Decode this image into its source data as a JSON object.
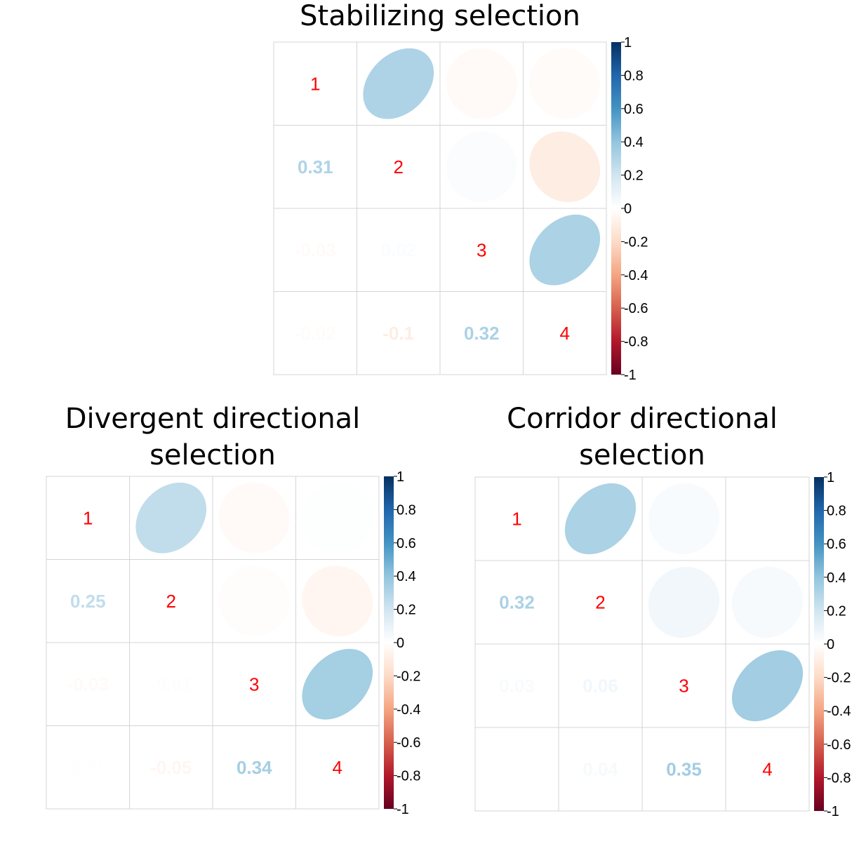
{
  "chart_data": [
    {
      "type": "heatmap",
      "title_lines": [
        "Stabilizing selection"
      ],
      "variables": [
        "1",
        "2",
        "3",
        "4"
      ],
      "matrix": [
        [
          1,
          0.31,
          -0.03,
          -0.02
        ],
        [
          0.31,
          1,
          0.02,
          -0.1
        ],
        [
          -0.03,
          0.02,
          1,
          0.32
        ],
        [
          -0.02,
          -0.1,
          0.32,
          1
        ]
      ],
      "upper": "ellipse",
      "lower": "number",
      "legend": {
        "ticks": [
          "-1",
          "-0.8",
          "-0.6",
          "-0.4",
          "-0.2",
          "0",
          "0.2",
          "0.4",
          "0.6",
          "0.8",
          "1"
        ],
        "range": [
          -1,
          1
        ],
        "placement": "right"
      }
    },
    {
      "type": "heatmap",
      "title_lines": [
        "Divergent directional",
        "selection"
      ],
      "variables": [
        "1",
        "2",
        "3",
        "4"
      ],
      "matrix": [
        [
          1,
          0.25,
          -0.03,
          0.01
        ],
        [
          0.25,
          1,
          -0.01,
          -0.05
        ],
        [
          -0.03,
          -0.01,
          1,
          0.34
        ],
        [
          0.01,
          -0.05,
          0.34,
          1
        ]
      ],
      "upper": "ellipse",
      "lower": "number",
      "legend": {
        "ticks": [
          "-1",
          "-0.8",
          "-0.6",
          "-0.4",
          "-0.2",
          "0",
          "0.2",
          "0.4",
          "0.6",
          "0.8",
          "1"
        ],
        "range": [
          -1,
          1
        ],
        "placement": "right"
      }
    },
    {
      "type": "heatmap",
      "title_lines": [
        "Corridor directional",
        "selection"
      ],
      "variables": [
        "1",
        "2",
        "3",
        "4"
      ],
      "matrix": [
        [
          1,
          0.32,
          0.03,
          0
        ],
        [
          0.32,
          1,
          0.06,
          0.04
        ],
        [
          0.03,
          0.06,
          1,
          0.35
        ],
        [
          0,
          0.04,
          0.35,
          1
        ]
      ],
      "upper": "ellipse",
      "lower": "number",
      "legend": {
        "ticks": [
          "-1",
          "-0.8",
          "-0.6",
          "-0.4",
          "-0.2",
          "0",
          "0.2",
          "0.4",
          "0.6",
          "0.8",
          "1"
        ],
        "range": [
          -1,
          1
        ],
        "placement": "right"
      }
    }
  ]
}
